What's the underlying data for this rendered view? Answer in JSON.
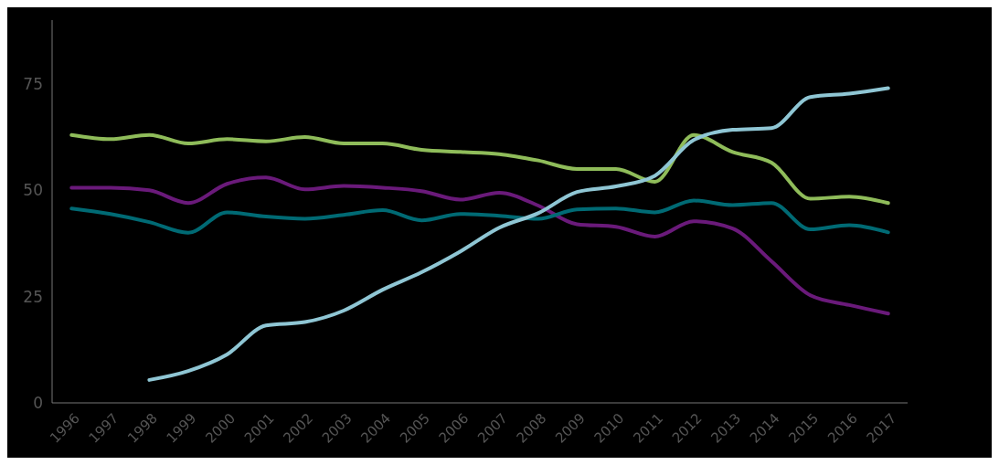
{
  "chart_data": {
    "type": "line",
    "categories": [
      "1996",
      "1997",
      "1998",
      "1999",
      "2000",
      "2001",
      "2002",
      "2003",
      "2004",
      "2005",
      "2006",
      "2007",
      "2008",
      "2009",
      "2010",
      "2011",
      "2012",
      "2013",
      "2014",
      "2015",
      "2016",
      "2017"
    ],
    "series": [
      {
        "color": "#8fbc5a",
        "values": [
          63,
          62,
          63,
          61,
          62,
          61.5,
          62.5,
          61,
          61,
          59.5,
          59,
          58.5,
          57,
          55,
          55,
          52,
          63,
          59,
          56.5,
          48,
          48.5,
          47
        ]
      },
      {
        "color": "#6a1a7a",
        "values": [
          50.6,
          50.6,
          50,
          47,
          51.5,
          53,
          50.2,
          51,
          50.6,
          49.8,
          47.8,
          49.4,
          46.4,
          42,
          41.4,
          39.1,
          42.7,
          41,
          33.3,
          25.3,
          23,
          21
        ]
      },
      {
        "color": "#006a74",
        "values": [
          45.7,
          44.4,
          42.5,
          40,
          44.8,
          43.8,
          43.3,
          44.2,
          45.3,
          42.9,
          44.4,
          44,
          43.3,
          45.5,
          45.7,
          44.8,
          47.6,
          46.5,
          47,
          40.8,
          41.8,
          40.1
        ]
      },
      {
        "color": "#8fc6d4",
        "values": [
          null,
          null,
          5.4,
          7.5,
          11.4,
          18.2,
          19,
          21.7,
          26.6,
          30.7,
          35.6,
          41.2,
          44.6,
          49.6,
          50.9,
          53.4,
          61.8,
          64.2,
          64.6,
          71.9,
          72.7,
          74
        ]
      }
    ],
    "ylim": [
      0,
      90
    ],
    "yticks": [
      0,
      25,
      50,
      75
    ],
    "grid": false,
    "marker": "none",
    "line_style": "solid"
  }
}
